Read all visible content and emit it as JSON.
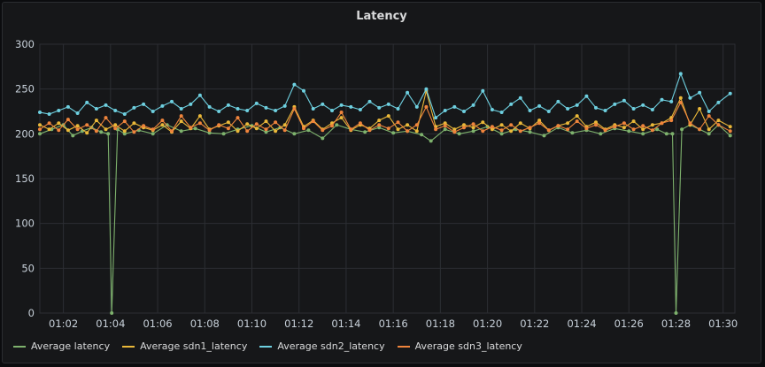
{
  "panel": {
    "title": "Latency"
  },
  "chart_data": {
    "type": "line",
    "title": "Latency",
    "xlabel": "",
    "ylabel": "",
    "ylim": [
      0,
      300
    ],
    "y_ticks": [
      0,
      50,
      100,
      150,
      200,
      250,
      300
    ],
    "x_tick_labels": [
      "01:02",
      "01:04",
      "01:06",
      "01:08",
      "01:10",
      "01:12",
      "01:14",
      "01:16",
      "01:18",
      "01:20",
      "01:22",
      "01:24",
      "01:26",
      "01:28",
      "01:30"
    ],
    "x_minutes": [
      2,
      4,
      6,
      8,
      10,
      12,
      14,
      16,
      18,
      20,
      22,
      24,
      26,
      28,
      30
    ],
    "grid": true,
    "legend_position": "bottom-left",
    "series": [
      {
        "name": "Average latency",
        "color": "#7eb26d",
        "points": [
          [
            1.0,
            200
          ],
          [
            1.5,
            205
          ],
          [
            2.0,
            210
          ],
          [
            2.4,
            198
          ],
          [
            2.8,
            203
          ],
          [
            3.2,
            207
          ],
          [
            3.6,
            202
          ],
          [
            3.9,
            200
          ],
          [
            4.05,
            0
          ],
          [
            4.3,
            205
          ],
          [
            4.6,
            200
          ],
          [
            5.2,
            204
          ],
          [
            5.8,
            200
          ],
          [
            6.4,
            210
          ],
          [
            7.0,
            203
          ],
          [
            7.6,
            206
          ],
          [
            8.2,
            201
          ],
          [
            8.8,
            200
          ],
          [
            9.4,
            205
          ],
          [
            10.0,
            209
          ],
          [
            10.6,
            202
          ],
          [
            11.2,
            207
          ],
          [
            11.8,
            200
          ],
          [
            12.4,
            204
          ],
          [
            13.0,
            195
          ],
          [
            13.6,
            210
          ],
          [
            14.2,
            205
          ],
          [
            14.8,
            202
          ],
          [
            15.4,
            207
          ],
          [
            16.0,
            201
          ],
          [
            16.6,
            203
          ],
          [
            17.2,
            199
          ],
          [
            17.6,
            192
          ],
          [
            18.2,
            205
          ],
          [
            18.8,
            200
          ],
          [
            19.4,
            203
          ],
          [
            20.0,
            208
          ],
          [
            20.6,
            200
          ],
          [
            21.2,
            205
          ],
          [
            21.8,
            202
          ],
          [
            22.4,
            198
          ],
          [
            23.0,
            207
          ],
          [
            23.6,
            201
          ],
          [
            24.2,
            204
          ],
          [
            24.8,
            200
          ],
          [
            25.4,
            206
          ],
          [
            26.0,
            203
          ],
          [
            26.6,
            200
          ],
          [
            27.2,
            205
          ],
          [
            27.6,
            200
          ],
          [
            27.85,
            200
          ],
          [
            28.0,
            0
          ],
          [
            28.25,
            205
          ],
          [
            28.6,
            210
          ],
          [
            29.0,
            205
          ],
          [
            29.4,
            200
          ],
          [
            29.8,
            210
          ],
          [
            30.3,
            198
          ]
        ]
      },
      {
        "name": "Average sdn1_latency",
        "color": "#eab839",
        "points": [
          [
            1.0,
            210
          ],
          [
            1.4,
            205
          ],
          [
            1.8,
            212
          ],
          [
            2.2,
            204
          ],
          [
            2.6,
            209
          ],
          [
            3.0,
            201
          ],
          [
            3.4,
            215
          ],
          [
            3.8,
            205
          ],
          [
            4.2,
            210
          ],
          [
            4.6,
            203
          ],
          [
            5.0,
            212
          ],
          [
            5.4,
            207
          ],
          [
            5.8,
            204
          ],
          [
            6.2,
            210
          ],
          [
            6.6,
            202
          ],
          [
            7.0,
            214
          ],
          [
            7.4,
            206
          ],
          [
            7.8,
            220
          ],
          [
            8.2,
            205
          ],
          [
            8.6,
            209
          ],
          [
            9.0,
            213
          ],
          [
            9.4,
            203
          ],
          [
            9.8,
            211
          ],
          [
            10.2,
            206
          ],
          [
            10.6,
            214
          ],
          [
            11.0,
            203
          ],
          [
            11.4,
            210
          ],
          [
            11.8,
            230
          ],
          [
            12.2,
            208
          ],
          [
            12.6,
            215
          ],
          [
            13.0,
            205
          ],
          [
            13.4,
            212
          ],
          [
            13.8,
            218
          ],
          [
            14.2,
            204
          ],
          [
            14.6,
            210
          ],
          [
            15.0,
            206
          ],
          [
            15.4,
            215
          ],
          [
            15.8,
            220
          ],
          [
            16.2,
            205
          ],
          [
            16.6,
            210
          ],
          [
            17.0,
            203
          ],
          [
            17.4,
            248
          ],
          [
            17.8,
            208
          ],
          [
            18.2,
            212
          ],
          [
            18.6,
            205
          ],
          [
            19.0,
            210
          ],
          [
            19.4,
            207
          ],
          [
            19.8,
            213
          ],
          [
            20.2,
            205
          ],
          [
            20.6,
            210
          ],
          [
            21.0,
            203
          ],
          [
            21.4,
            212
          ],
          [
            21.8,
            206
          ],
          [
            22.2,
            215
          ],
          [
            22.6,
            204
          ],
          [
            23.0,
            209
          ],
          [
            23.4,
            212
          ],
          [
            23.8,
            220
          ],
          [
            24.2,
            208
          ],
          [
            24.6,
            213
          ],
          [
            25.0,
            205
          ],
          [
            25.4,
            210
          ],
          [
            25.8,
            207
          ],
          [
            26.2,
            214
          ],
          [
            26.6,
            205
          ],
          [
            27.0,
            210
          ],
          [
            27.4,
            212
          ],
          [
            27.8,
            218
          ],
          [
            28.2,
            240
          ],
          [
            28.6,
            210
          ],
          [
            29.0,
            228
          ],
          [
            29.4,
            205
          ],
          [
            29.8,
            215
          ],
          [
            30.3,
            208
          ]
        ]
      },
      {
        "name": "Average sdn2_latency",
        "color": "#6ed0e0",
        "points": [
          [
            1.0,
            224
          ],
          [
            1.4,
            222
          ],
          [
            1.8,
            226
          ],
          [
            2.2,
            230
          ],
          [
            2.6,
            223
          ],
          [
            3.0,
            235
          ],
          [
            3.4,
            228
          ],
          [
            3.8,
            232
          ],
          [
            4.2,
            226
          ],
          [
            4.6,
            222
          ],
          [
            5.0,
            229
          ],
          [
            5.4,
            233
          ],
          [
            5.8,
            225
          ],
          [
            6.2,
            231
          ],
          [
            6.6,
            236
          ],
          [
            7.0,
            228
          ],
          [
            7.4,
            233
          ],
          [
            7.8,
            243
          ],
          [
            8.2,
            230
          ],
          [
            8.6,
            225
          ],
          [
            9.0,
            232
          ],
          [
            9.4,
            228
          ],
          [
            9.8,
            226
          ],
          [
            10.2,
            234
          ],
          [
            10.6,
            229
          ],
          [
            11.0,
            226
          ],
          [
            11.4,
            231
          ],
          [
            11.8,
            255
          ],
          [
            12.2,
            248
          ],
          [
            12.6,
            228
          ],
          [
            13.0,
            233
          ],
          [
            13.4,
            226
          ],
          [
            13.8,
            232
          ],
          [
            14.2,
            230
          ],
          [
            14.6,
            227
          ],
          [
            15.0,
            236
          ],
          [
            15.4,
            229
          ],
          [
            15.8,
            233
          ],
          [
            16.2,
            228
          ],
          [
            16.6,
            246
          ],
          [
            17.0,
            230
          ],
          [
            17.4,
            250
          ],
          [
            17.8,
            218
          ],
          [
            18.2,
            226
          ],
          [
            18.6,
            230
          ],
          [
            19.0,
            225
          ],
          [
            19.4,
            232
          ],
          [
            19.8,
            248
          ],
          [
            20.2,
            227
          ],
          [
            20.6,
            224
          ],
          [
            21.0,
            233
          ],
          [
            21.4,
            240
          ],
          [
            21.8,
            226
          ],
          [
            22.2,
            231
          ],
          [
            22.6,
            225
          ],
          [
            23.0,
            236
          ],
          [
            23.4,
            228
          ],
          [
            23.8,
            232
          ],
          [
            24.2,
            242
          ],
          [
            24.6,
            229
          ],
          [
            25.0,
            226
          ],
          [
            25.4,
            233
          ],
          [
            25.8,
            237
          ],
          [
            26.2,
            228
          ],
          [
            26.6,
            232
          ],
          [
            27.0,
            227
          ],
          [
            27.4,
            238
          ],
          [
            27.8,
            236
          ],
          [
            28.2,
            267
          ],
          [
            28.6,
            240
          ],
          [
            29.0,
            246
          ],
          [
            29.4,
            225
          ],
          [
            29.8,
            235
          ],
          [
            30.3,
            245
          ]
        ]
      },
      {
        "name": "Average sdn3_latency",
        "color": "#ef843c",
        "points": [
          [
            1.0,
            205
          ],
          [
            1.4,
            212
          ],
          [
            1.8,
            204
          ],
          [
            2.2,
            216
          ],
          [
            2.6,
            205
          ],
          [
            3.0,
            210
          ],
          [
            3.4,
            203
          ],
          [
            3.8,
            218
          ],
          [
            4.2,
            206
          ],
          [
            4.6,
            214
          ],
          [
            5.0,
            202
          ],
          [
            5.4,
            209
          ],
          [
            5.8,
            205
          ],
          [
            6.2,
            215
          ],
          [
            6.6,
            203
          ],
          [
            7.0,
            220
          ],
          [
            7.4,
            207
          ],
          [
            7.8,
            212
          ],
          [
            8.2,
            204
          ],
          [
            8.6,
            210
          ],
          [
            9.0,
            206
          ],
          [
            9.4,
            218
          ],
          [
            9.8,
            203
          ],
          [
            10.2,
            211
          ],
          [
            10.6,
            205
          ],
          [
            11.0,
            213
          ],
          [
            11.4,
            204
          ],
          [
            11.8,
            228
          ],
          [
            12.2,
            206
          ],
          [
            12.6,
            214
          ],
          [
            13.0,
            204
          ],
          [
            13.4,
            209
          ],
          [
            13.8,
            224
          ],
          [
            14.2,
            205
          ],
          [
            14.6,
            212
          ],
          [
            15.0,
            204
          ],
          [
            15.4,
            210
          ],
          [
            15.8,
            206
          ],
          [
            16.2,
            213
          ],
          [
            16.6,
            203
          ],
          [
            17.0,
            210
          ],
          [
            17.4,
            230
          ],
          [
            17.8,
            205
          ],
          [
            18.2,
            209
          ],
          [
            18.6,
            202
          ],
          [
            19.0,
            207
          ],
          [
            19.4,
            211
          ],
          [
            19.8,
            203
          ],
          [
            20.2,
            208
          ],
          [
            20.6,
            204
          ],
          [
            21.0,
            210
          ],
          [
            21.4,
            203
          ],
          [
            21.8,
            207
          ],
          [
            22.2,
            212
          ],
          [
            22.6,
            204
          ],
          [
            23.0,
            209
          ],
          [
            23.4,
            205
          ],
          [
            23.8,
            214
          ],
          [
            24.2,
            206
          ],
          [
            24.6,
            210
          ],
          [
            25.0,
            204
          ],
          [
            25.4,
            208
          ],
          [
            25.8,
            212
          ],
          [
            26.2,
            205
          ],
          [
            26.6,
            209
          ],
          [
            27.0,
            204
          ],
          [
            27.4,
            212
          ],
          [
            27.8,
            215
          ],
          [
            28.2,
            235
          ],
          [
            28.6,
            212
          ],
          [
            29.0,
            205
          ],
          [
            29.4,
            220
          ],
          [
            29.8,
            210
          ],
          [
            30.3,
            203
          ]
        ]
      }
    ]
  }
}
